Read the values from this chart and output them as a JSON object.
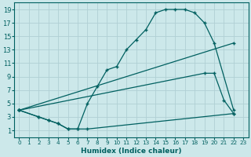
{
  "xlabel": "Humidex (Indice chaleur)",
  "bg_color": "#cce8ea",
  "grid_color": "#b0d0d4",
  "line_color": "#006060",
  "xlim": [
    -0.5,
    23.5
  ],
  "ylim": [
    0,
    20
  ],
  "xticks": [
    0,
    1,
    2,
    3,
    4,
    5,
    6,
    7,
    8,
    9,
    10,
    11,
    12,
    13,
    14,
    15,
    16,
    17,
    18,
    19,
    20,
    21,
    22,
    23
  ],
  "yticks": [
    1,
    3,
    5,
    7,
    9,
    11,
    13,
    15,
    17,
    19
  ],
  "curves": [
    {
      "x": [
        0,
        2,
        3,
        4,
        5,
        6,
        7,
        8,
        9,
        10,
        11,
        12,
        13,
        14,
        15,
        16,
        17,
        18,
        19,
        20,
        22
      ],
      "y": [
        4,
        3,
        2.5,
        2,
        1.2,
        1.2,
        5,
        7.5,
        10,
        10.5,
        13,
        14.5,
        16,
        18.5,
        19,
        19,
        19,
        18.5,
        17,
        14,
        4
      ]
    },
    {
      "x": [
        0,
        22
      ],
      "y": [
        4,
        14
      ]
    },
    {
      "x": [
        0,
        19,
        20,
        21,
        22
      ],
      "y": [
        4,
        9.5,
        9.5,
        5.5,
        3.5
      ]
    },
    {
      "x": [
        0,
        2,
        3,
        4,
        5,
        6,
        7,
        22
      ],
      "y": [
        4,
        3,
        2.5,
        2,
        1.2,
        1.2,
        1.2,
        3.5
      ]
    }
  ]
}
